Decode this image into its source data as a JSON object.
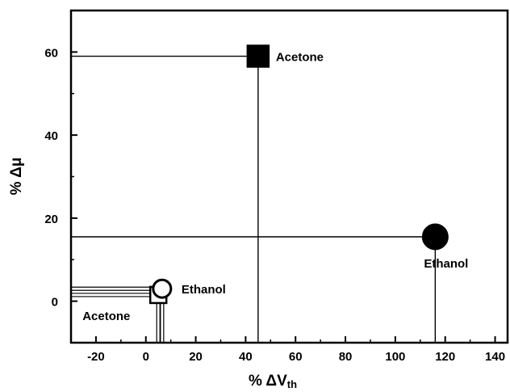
{
  "chart_data": {
    "type": "scatter",
    "title": "",
    "xlabel": {
      "prefix": "% ΔV",
      "subscript": "th"
    },
    "ylabel": "% Δμ",
    "xlim": [
      -30,
      145
    ],
    "ylim": [
      -10,
      70
    ],
    "xticks": [
      "-20",
      "0",
      "20",
      "40",
      "60",
      "80",
      "100",
      "120",
      "140"
    ],
    "yticks": [
      "0",
      "20",
      "40",
      "60"
    ],
    "points": [
      {
        "label": "Acetone",
        "x": 45,
        "y": 59,
        "marker": "square",
        "filled": true,
        "label_anchor": "right",
        "double_line": false
      },
      {
        "label": "Ethanol",
        "x": 116,
        "y": 15.5,
        "marker": "circle",
        "filled": true,
        "label_anchor": "below",
        "double_line": false
      },
      {
        "label": "Acetone",
        "x": 5,
        "y": 1.5,
        "marker": "square",
        "filled": false,
        "label_anchor": "below-left",
        "double_line": true
      },
      {
        "label": "Ethanol",
        "x": 6.5,
        "y": 3,
        "marker": "circle",
        "filled": false,
        "label_anchor": "right",
        "double_line": true
      }
    ],
    "grid": false,
    "legend": "none"
  }
}
